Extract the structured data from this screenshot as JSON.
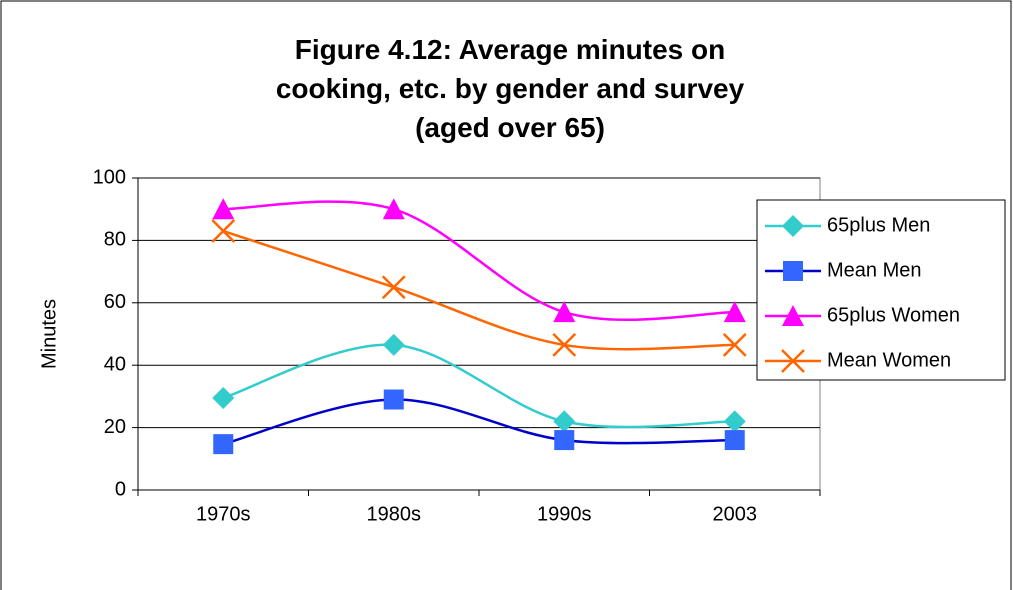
{
  "chart_data": {
    "type": "line",
    "title": "Figure 4.12: Average minutes on cooking, etc. by gender and survey (aged over 65)",
    "y_label": "Minutes",
    "categories": [
      "1970s",
      "1980s",
      "1990s",
      "2003"
    ],
    "series": [
      {
        "name": "65plus Men",
        "color": "#33cccc",
        "marker": "diamond",
        "values": [
          29.5,
          46.5,
          22,
          22
        ]
      },
      {
        "name": "Mean Men",
        "color": "#0000cc",
        "marker_color": "#3366ff",
        "marker": "square",
        "values": [
          14.7,
          29,
          16,
          16
        ]
      },
      {
        "name": "65plus Women",
        "color": "#ff00ff",
        "marker": "triangle",
        "values": [
          90,
          90,
          57,
          57
        ]
      },
      {
        "name": "Mean Women",
        "color": "#ff6600",
        "marker": "x",
        "values": [
          83,
          65,
          46.5,
          46.5
        ]
      }
    ],
    "ylim": [
      0,
      100
    ],
    "yticks": [
      0,
      20,
      40,
      60,
      80,
      100
    ],
    "grid": true,
    "smooth": true,
    "legend": "right"
  }
}
